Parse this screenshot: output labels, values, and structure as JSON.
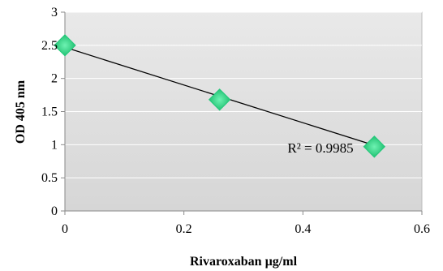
{
  "chart_data": {
    "type": "scatter",
    "xlabel": "Rivaroxaban µg/ml",
    "ylabel": "OD 405 nm",
    "xlim": [
      0,
      0.6
    ],
    "ylim": [
      0,
      3
    ],
    "x_ticks": [
      0,
      0.2,
      0.4,
      0.6
    ],
    "x_tick_labels": [
      "0",
      "0.2",
      "0.4",
      "0.6"
    ],
    "y_ticks": [
      0,
      0.5,
      1,
      1.5,
      2,
      2.5,
      3
    ],
    "y_tick_labels": [
      "0",
      "0.5",
      "1",
      "1.5",
      "2",
      "2.5",
      "3"
    ],
    "grid": true,
    "series": [
      {
        "x": [
          0,
          0.26,
          0.52
        ],
        "y": [
          2.5,
          1.68,
          0.97
        ],
        "marker": "diamond",
        "color": "#22c77a"
      }
    ],
    "trendline": {
      "type": "linear",
      "x_range": [
        0,
        0.52
      ],
      "y_endpoints": [
        2.47,
        0.99
      ],
      "color": "#000000",
      "r2_label": "R² = 0.9985"
    },
    "plot_background": "#dcdcdc"
  }
}
